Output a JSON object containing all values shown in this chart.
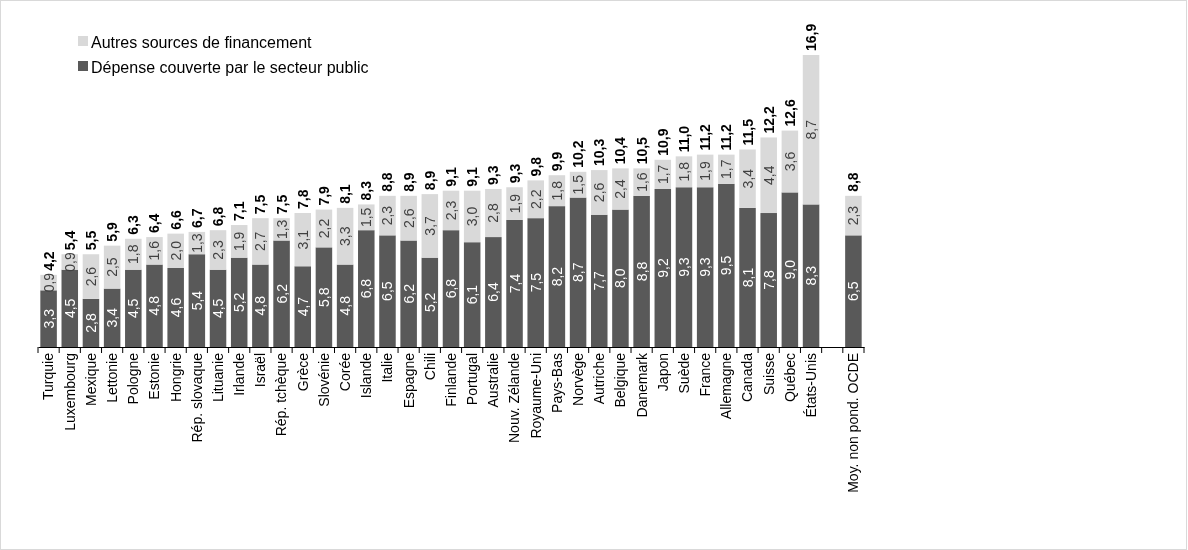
{
  "chart_data": {
    "type": "bar",
    "stacked": true,
    "legend": "top left",
    "categories": [
      "Turquie",
      "Luxembourg",
      "Mexique",
      "Lettonie",
      "Pologne",
      "Estonie",
      "Hongrie",
      "Rép. slovaque",
      "Lituanie",
      "Irlande",
      "Israël",
      "Rép. tchèque",
      "Grèce",
      "Slovénie",
      "Corée",
      "Islande",
      "Italie",
      "Espagne",
      "Chili",
      "Finlande",
      "Portugal",
      "Australie",
      "Nouv. Zélande",
      "Royaume-Uni",
      "Pays-Bas",
      "Norvège",
      "Autriche",
      "Belgique",
      "Danemark",
      "Japon",
      "Suède",
      "France",
      "Allemagne",
      "Canada",
      "Suisse",
      "Québec",
      "États-Unis",
      null,
      "Moy. non pond. OCDE"
    ],
    "series": [
      {
        "name": "Dépense couverte par le secteur public",
        "color": "#595959",
        "values": [
          3.3,
          4.5,
          2.8,
          3.4,
          4.5,
          4.8,
          4.6,
          5.4,
          4.5,
          5.2,
          4.8,
          6.2,
          4.7,
          5.8,
          4.8,
          6.8,
          6.5,
          6.2,
          5.2,
          6.8,
          6.1,
          6.4,
          7.4,
          7.5,
          8.2,
          8.7,
          7.7,
          8.0,
          8.8,
          9.2,
          9.3,
          9.3,
          9.5,
          8.1,
          7.8,
          9.0,
          8.3,
          null,
          6.5
        ],
        "value_labels": [
          "3,3",
          "4,5",
          "2,8",
          "3,4",
          "4,5",
          "4,8",
          "4,6",
          "5,4",
          "4,5",
          "5,2",
          "4,8",
          "6,2",
          "4,7",
          "5,8",
          "4,8",
          "6,8",
          "6,5",
          "6,2",
          "5,2",
          "6,8",
          "6,1",
          "6,4",
          "7,4",
          "7,5",
          "8,2",
          "8,7",
          "7,7",
          "8,0",
          "8,8",
          "9,2",
          "9,3",
          "9,3",
          "9,5",
          "8,1",
          "7,8",
          "9,0",
          "8,3",
          null,
          "6,5"
        ]
      },
      {
        "name": "Autres sources de financement",
        "color": "#d9d9d9",
        "values": [
          0.9,
          0.9,
          2.6,
          2.5,
          1.8,
          1.6,
          2.0,
          1.3,
          2.3,
          1.9,
          2.7,
          1.3,
          3.1,
          2.2,
          3.3,
          1.5,
          2.3,
          2.6,
          3.7,
          2.3,
          3.0,
          2.8,
          1.9,
          2.2,
          1.8,
          1.5,
          2.6,
          2.4,
          1.6,
          1.7,
          1.8,
          1.9,
          1.7,
          3.4,
          4.4,
          3.6,
          8.7,
          null,
          2.3
        ],
        "value_labels": [
          "0,9",
          "0,9",
          "2,6",
          "2,5",
          "1,8",
          "1,6",
          "2,0",
          "1,3",
          "2,3",
          "1,9",
          "2,7",
          "1,3",
          "3,1",
          "2,2",
          "3,3",
          "1,5",
          "2,3",
          "2,6",
          "3,7",
          "2,3",
          "3,0",
          "2,8",
          "1,9",
          "2,2",
          "1,8",
          "1,5",
          "2,6",
          "2,4",
          "1,6",
          "1,7",
          "1,8",
          "1,9",
          "1,7",
          "3,4",
          "4,4",
          "3,6",
          "8,7",
          null,
          "2,3"
        ]
      }
    ],
    "totals": [
      "4,2",
      "5,4",
      "5,5",
      "5,9",
      "6,3",
      "6,4",
      "6,6",
      "6,7",
      "6,8",
      "7,1",
      "7,5",
      "7,5",
      "7,8",
      "7,9",
      "8,1",
      "8,3",
      "8,8",
      "8,9",
      "8,9",
      "9,1",
      "9,1",
      "9,3",
      "9,3",
      "9,8",
      "9,9",
      "10,2",
      "10,3",
      "10,4",
      "10,5",
      "10,9",
      "11,0",
      "11,2",
      "11,2",
      "11,5",
      "12,2",
      "12,6",
      "16,9",
      null,
      "8,8"
    ]
  }
}
